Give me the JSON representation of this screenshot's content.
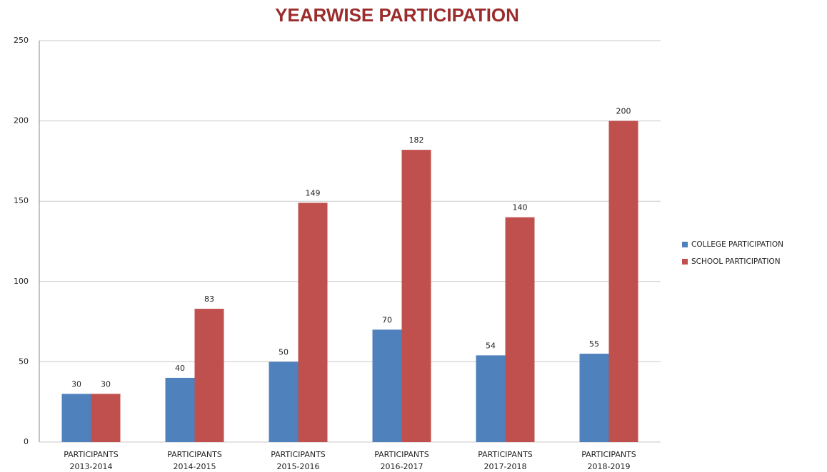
{
  "chart_data": {
    "type": "bar",
    "title": "YEARWISE PARTICIPATION",
    "categories": [
      "PARTICIPANTS 2013-2014",
      "PARTICIPANTS 2014-2015",
      "PARTICIPANTS 2015-2016",
      "PARTICIPANTS 2016-2017",
      "PARTICIPANTS 2017-2018",
      "PARTICIPANTS 2018-2019"
    ],
    "series": [
      {
        "name": "COLLEGE PARTICIPATION",
        "color": "#4f81bd",
        "values": [
          30,
          40,
          50,
          70,
          54,
          55
        ]
      },
      {
        "name": "SCHOOL PARTICIPATION",
        "color": "#c0504d",
        "values": [
          30,
          83,
          149,
          182,
          140,
          200
        ]
      }
    ],
    "ylim": [
      0,
      250
    ],
    "yticks": [
      0,
      50,
      100,
      150,
      200,
      250
    ],
    "grid": true,
    "legend": "right"
  }
}
